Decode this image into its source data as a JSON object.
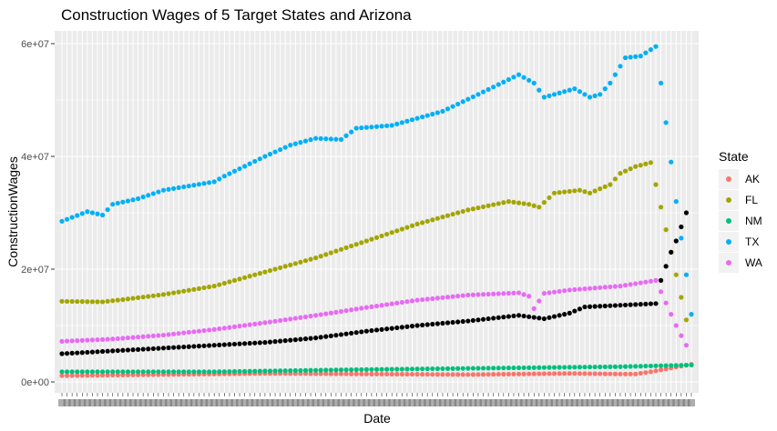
{
  "chart_data": {
    "type": "scatter",
    "title": "Construction Wages of 5 Target States and Arizona",
    "xlabel": "Date",
    "ylabel": "ConstructionWages",
    "x_count": 125,
    "ylim": [
      0,
      62000000
    ],
    "y_ticks": [
      {
        "value": 0,
        "label": "0e+00"
      },
      {
        "value": 20000000,
        "label": "2e+07"
      },
      {
        "value": 40000000,
        "label": "4e+07"
      },
      {
        "value": 60000000,
        "label": "6e+07"
      }
    ],
    "x_tick_label_note": "x tick labels are overplotted and illegible",
    "legend": {
      "title": "State",
      "position": "right",
      "entries": [
        {
          "label": "AK",
          "color": "#F8766D"
        },
        {
          "label": "FL",
          "color": "#A3A500"
        },
        {
          "label": "NM",
          "color": "#00BF7D"
        },
        {
          "label": "TX",
          "color": "#00B0F6"
        },
        {
          "label": "WA",
          "color": "#E76BF3"
        }
      ]
    },
    "unlabeled_series_color": "#000000",
    "panel_background": "#EBEBEB",
    "grid": true,
    "series": [
      {
        "name": "AK",
        "color": "#F8766D",
        "anchors": [
          [
            0,
            1100000
          ],
          [
            20,
            1300000
          ],
          [
            40,
            1500000
          ],
          [
            60,
            1400000
          ],
          [
            80,
            1300000
          ],
          [
            100,
            1500000
          ],
          [
            110,
            1400000
          ],
          [
            113,
            1400000
          ],
          [
            116,
            1800000
          ],
          [
            119,
            2300000
          ],
          [
            122,
            2800000
          ],
          [
            124,
            3100000
          ]
        ]
      },
      {
        "name": "FL",
        "color": "#A3A500",
        "anchors": [
          [
            0,
            14300000
          ],
          [
            8,
            14200000
          ],
          [
            12,
            14600000
          ],
          [
            20,
            15500000
          ],
          [
            30,
            17000000
          ],
          [
            40,
            19500000
          ],
          [
            50,
            22000000
          ],
          [
            60,
            25000000
          ],
          [
            70,
            28000000
          ],
          [
            80,
            30500000
          ],
          [
            88,
            32000000
          ],
          [
            92,
            31500000
          ],
          [
            94,
            31000000
          ],
          [
            97,
            33500000
          ],
          [
            102,
            34000000
          ],
          [
            104,
            33500000
          ],
          [
            108,
            35000000
          ],
          [
            110,
            37000000
          ],
          [
            113,
            38200000
          ],
          [
            116,
            38900000
          ],
          [
            117,
            35000000
          ],
          [
            118,
            31000000
          ],
          [
            119,
            27000000
          ],
          [
            120,
            23000000
          ],
          [
            121,
            19000000
          ],
          [
            122,
            15000000
          ],
          [
            123,
            11000000
          ]
        ]
      },
      {
        "name": "NM",
        "color": "#00BF7D",
        "anchors": [
          [
            0,
            1800000
          ],
          [
            30,
            1800000
          ],
          [
            60,
            2200000
          ],
          [
            90,
            2500000
          ],
          [
            110,
            2700000
          ],
          [
            124,
            3000000
          ]
        ]
      },
      {
        "name": "TX",
        "color": "#00B0F6",
        "anchors": [
          [
            0,
            28500000
          ],
          [
            5,
            30200000
          ],
          [
            8,
            29600000
          ],
          [
            10,
            31500000
          ],
          [
            15,
            32500000
          ],
          [
            20,
            34000000
          ],
          [
            30,
            35500000
          ],
          [
            32,
            36500000
          ],
          [
            40,
            40000000
          ],
          [
            45,
            42000000
          ],
          [
            50,
            43200000
          ],
          [
            55,
            43000000
          ],
          [
            58,
            45000000
          ],
          [
            65,
            45500000
          ],
          [
            75,
            48000000
          ],
          [
            82,
            51000000
          ],
          [
            90,
            54500000
          ],
          [
            93,
            53000000
          ],
          [
            95,
            50500000
          ],
          [
            101,
            52000000
          ],
          [
            104,
            50500000
          ],
          [
            106,
            51000000
          ],
          [
            108,
            53000000
          ],
          [
            111,
            57500000
          ],
          [
            114,
            57800000
          ],
          [
            117,
            59500000
          ],
          [
            118,
            53000000
          ],
          [
            119,
            46000000
          ],
          [
            120,
            39000000
          ],
          [
            121,
            32000000
          ],
          [
            122,
            25500000
          ],
          [
            123,
            19000000
          ],
          [
            124,
            12000000
          ]
        ]
      },
      {
        "name": "WA",
        "color": "#E76BF3",
        "anchors": [
          [
            0,
            7200000
          ],
          [
            10,
            7600000
          ],
          [
            20,
            8300000
          ],
          [
            30,
            9300000
          ],
          [
            40,
            10500000
          ],
          [
            50,
            11800000
          ],
          [
            60,
            13200000
          ],
          [
            70,
            14500000
          ],
          [
            80,
            15400000
          ],
          [
            90,
            15800000
          ],
          [
            92,
            15200000
          ],
          [
            93,
            13000000
          ],
          [
            95,
            15700000
          ],
          [
            100,
            16300000
          ],
          [
            110,
            17000000
          ],
          [
            117,
            18000000
          ],
          [
            118,
            16000000
          ],
          [
            119,
            14000000
          ],
          [
            120,
            12000000
          ],
          [
            121,
            10000000
          ],
          [
            122,
            8200000
          ],
          [
            123,
            6500000
          ]
        ]
      },
      {
        "color": "#000000",
        "anchors": [
          [
            0,
            5000000
          ],
          [
            10,
            5500000
          ],
          [
            20,
            6000000
          ],
          [
            30,
            6500000
          ],
          [
            40,
            7000000
          ],
          [
            50,
            7800000
          ],
          [
            60,
            9000000
          ],
          [
            70,
            10000000
          ],
          [
            80,
            10800000
          ],
          [
            90,
            11800000
          ],
          [
            95,
            11200000
          ],
          [
            100,
            12200000
          ],
          [
            103,
            13300000
          ],
          [
            110,
            13600000
          ],
          [
            117,
            13900000
          ],
          [
            118,
            18000000
          ],
          [
            119,
            20500000
          ],
          [
            120,
            23000000
          ],
          [
            121,
            25000000
          ],
          [
            122,
            27500000
          ],
          [
            123,
            30000000
          ]
        ]
      }
    ]
  }
}
